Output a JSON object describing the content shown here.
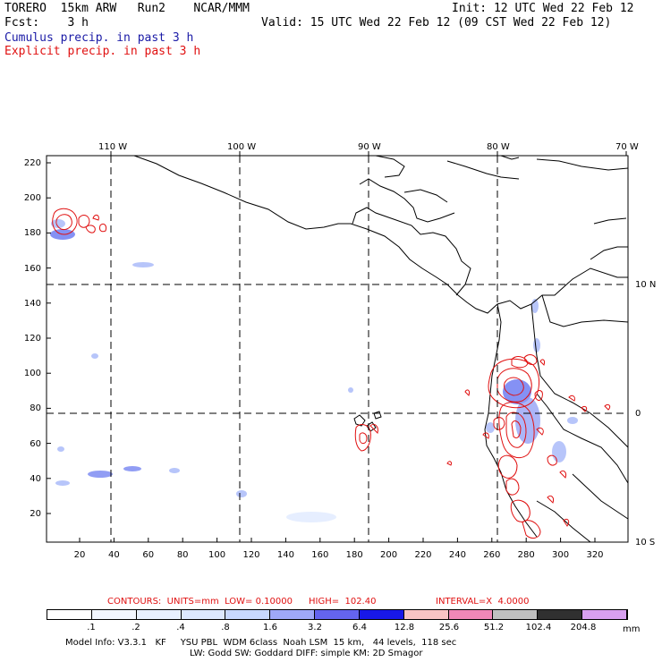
{
  "header": {
    "model": "TORERO  15km ARW   Run2    NCAR/MMM",
    "init": "Init: 12 UTC Wed 22 Feb 12",
    "fcst": "Fcst:    3 h",
    "valid": "Valid: 15 UTC Wed 22 Feb 12 (09 CST Wed 22 Feb 12)",
    "cumulus": "Cumulus precip. in past 3 h",
    "explicit": "Explicit precip. in past 3 h"
  },
  "map": {
    "lon_labels": [
      "110 W",
      "100 W",
      "90 W",
      "80 W",
      "70 W"
    ],
    "lat_labels": [
      "10 N",
      "0",
      "10 S"
    ],
    "x_ticks": [
      "20",
      "40",
      "60",
      "80",
      "100",
      "120",
      "140",
      "160",
      "180",
      "200",
      "220",
      "240",
      "260",
      "280",
      "300",
      "320"
    ],
    "y_ticks": [
      "220",
      "200",
      "180",
      "160",
      "140",
      "120",
      "100",
      "80",
      "60",
      "40",
      "20"
    ],
    "colors": {
      "coast": "#000000",
      "grid": "#000000",
      "cumulus": "#5c6cf0",
      "explicit": "#e01010"
    }
  },
  "contours_line": {
    "contours": "CONTOURS:  UNITS=mm  LOW= 0.10000",
    "high": "HIGH=  102.40",
    "interval": "INTERVAL=X  4.0000"
  },
  "colorbar": {
    "labels": [
      ".1",
      ".2",
      ".4",
      ".8",
      "1.6",
      "3.2",
      "6.4",
      "12.8",
      "25.6",
      "51.2",
      "102.4",
      "204.8"
    ],
    "unit": "mm",
    "colors": [
      "#ffffff",
      "#f2f6ff",
      "#e8f0ff",
      "#dde8ff",
      "#c8d8ff",
      "#9fa8f8",
      "#6464ee",
      "#1818e8",
      "#f8c4c4",
      "#f088b8",
      "#c0c0c0",
      "#303030",
      "#d8a0f0"
    ]
  },
  "footer": {
    "line1": "Model Info: V3.3.1   KF     YSU PBL  WDM 6class  Noah LSM  15 km,   44 levels,  118 sec",
    "line2": "LW: Godd SW: Goddard DIFF: simple KM: 2D Smagor"
  }
}
